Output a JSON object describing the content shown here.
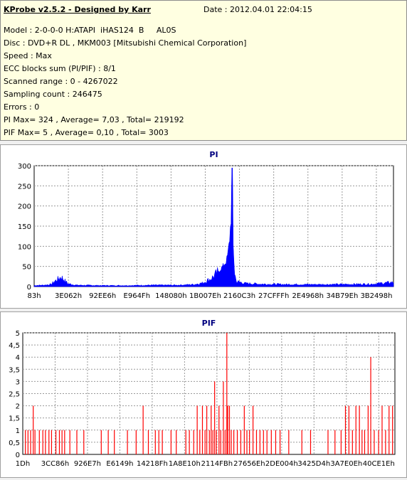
{
  "header": {
    "title": "KProbe v2.5.2 - Designed by Karr",
    "date": "Date : 2012.04.01 22:04:15",
    "lines": [
      "Model : 2-0-0-0 H:ATAPI  iHAS124  B     AL0S",
      "Disc : DVD+R DL , MKM003 [Mitsubishi Chemical Corporation]",
      "Speed : Max",
      "ECC blocks sum (PI/PIF) : 8/1",
      "Scanned range : 0 - 4267022",
      "Sampling count : 246475",
      "Errors : 0",
      "PI Max= 324 , Average= 7,03 , Total= 219192",
      "PIF Max= 5 , Average= 0,10 , Total= 3003"
    ]
  },
  "chart_data": [
    {
      "type": "area",
      "title": "PI",
      "color": "#0000ff",
      "ylim": [
        0,
        330
      ],
      "yticks": [
        "0",
        "50",
        "100",
        "150",
        "200",
        "250",
        "300"
      ],
      "xticks": [
        "83h",
        "3E062h",
        "92EE6h",
        "E964Fh",
        "148080h",
        "1B007Eh",
        "2160C3h",
        "27CFFFh",
        "2E4968h",
        "34B79Eh",
        "3B2498h"
      ],
      "x_range": [
        0,
        4267022
      ],
      "profile": [
        [
          0,
          3
        ],
        [
          110000,
          4
        ],
        [
          200000,
          6
        ],
        [
          240000,
          14
        ],
        [
          290000,
          22
        ],
        [
          320000,
          27
        ],
        [
          350000,
          20
        ],
        [
          400000,
          8
        ],
        [
          500000,
          4
        ],
        [
          800000,
          3
        ],
        [
          1100000,
          3
        ],
        [
          1400000,
          4
        ],
        [
          1700000,
          4
        ],
        [
          1900000,
          6
        ],
        [
          2000000,
          10
        ],
        [
          2050000,
          16
        ],
        [
          2100000,
          22
        ],
        [
          2150000,
          32
        ],
        [
          2200000,
          45
        ],
        [
          2250000,
          60
        ],
        [
          2280000,
          70
        ],
        [
          2300000,
          90
        ],
        [
          2320000,
          130
        ],
        [
          2340000,
          200
        ],
        [
          2350000,
          324
        ],
        [
          2360000,
          130
        ],
        [
          2380000,
          40
        ],
        [
          2400000,
          14
        ],
        [
          2450000,
          12
        ],
        [
          2500000,
          9
        ],
        [
          2700000,
          7
        ],
        [
          3000000,
          6
        ],
        [
          3500000,
          6
        ],
        [
          4000000,
          7
        ],
        [
          4267022,
          12
        ]
      ]
    },
    {
      "type": "bar",
      "title": "PIF",
      "color": "#ff0000",
      "ylim": [
        0,
        5
      ],
      "yticks": [
        "0",
        "0,5",
        "1",
        "1,5",
        "2",
        "2,5",
        "3",
        "3,5",
        "4",
        "4,5",
        "5"
      ],
      "xticks": [
        "1Dh",
        "3CC86h",
        "926E7h",
        "E6149h",
        "14218Fh",
        "1A8E10h",
        "2114FBh",
        "27656Eh",
        "2DE004h",
        "3425D4h",
        "3A7E0Eh",
        "40CE1Eh"
      ],
      "x_range": [
        0,
        4267022
      ],
      "spikes": [
        [
          30000,
          1
        ],
        [
          60000,
          1
        ],
        [
          90000,
          1
        ],
        [
          120000,
          2
        ],
        [
          140000,
          1
        ],
        [
          190000,
          1
        ],
        [
          230000,
          1
        ],
        [
          260000,
          1
        ],
        [
          300000,
          1
        ],
        [
          330000,
          1
        ],
        [
          380000,
          1
        ],
        [
          420000,
          1
        ],
        [
          450000,
          1
        ],
        [
          480000,
          1
        ],
        [
          540000,
          1
        ],
        [
          620000,
          1
        ],
        [
          700000,
          1
        ],
        [
          900000,
          1
        ],
        [
          980000,
          1
        ],
        [
          1050000,
          1
        ],
        [
          1200000,
          1
        ],
        [
          1300000,
          1
        ],
        [
          1380000,
          2
        ],
        [
          1440000,
          1
        ],
        [
          1520000,
          1
        ],
        [
          1560000,
          1
        ],
        [
          1600000,
          1
        ],
        [
          1700000,
          1
        ],
        [
          1760000,
          1
        ],
        [
          1870000,
          1
        ],
        [
          1910000,
          1
        ],
        [
          1960000,
          1
        ],
        [
          2000000,
          2
        ],
        [
          2030000,
          1
        ],
        [
          2060000,
          2
        ],
        [
          2090000,
          1
        ],
        [
          2110000,
          2
        ],
        [
          2140000,
          1
        ],
        [
          2160000,
          2
        ],
        [
          2180000,
          1
        ],
        [
          2200000,
          3
        ],
        [
          2220000,
          1
        ],
        [
          2250000,
          2
        ],
        [
          2270000,
          1
        ],
        [
          2300000,
          3
        ],
        [
          2320000,
          1
        ],
        [
          2340000,
          5
        ],
        [
          2350000,
          2
        ],
        [
          2370000,
          2
        ],
        [
          2390000,
          1
        ],
        [
          2420000,
          1
        ],
        [
          2460000,
          1
        ],
        [
          2500000,
          1
        ],
        [
          2540000,
          2
        ],
        [
          2570000,
          1
        ],
        [
          2600000,
          1
        ],
        [
          2640000,
          2
        ],
        [
          2680000,
          1
        ],
        [
          2720000,
          1
        ],
        [
          2760000,
          1
        ],
        [
          2800000,
          1
        ],
        [
          2850000,
          1
        ],
        [
          2900000,
          1
        ],
        [
          2950000,
          1
        ],
        [
          3050000,
          1
        ],
        [
          3200000,
          1
        ],
        [
          3300000,
          1
        ],
        [
          3500000,
          1
        ],
        [
          3580000,
          1
        ],
        [
          3650000,
          1
        ],
        [
          3700000,
          2
        ],
        [
          3740000,
          2
        ],
        [
          3780000,
          1
        ],
        [
          3820000,
          2
        ],
        [
          3860000,
          2
        ],
        [
          3890000,
          1
        ],
        [
          3920000,
          1
        ],
        [
          3960000,
          2
        ],
        [
          3990000,
          4
        ],
        [
          4030000,
          1
        ],
        [
          4080000,
          1
        ],
        [
          4120000,
          2
        ],
        [
          4160000,
          1
        ],
        [
          4200000,
          2
        ],
        [
          4240000,
          2
        ]
      ]
    }
  ]
}
